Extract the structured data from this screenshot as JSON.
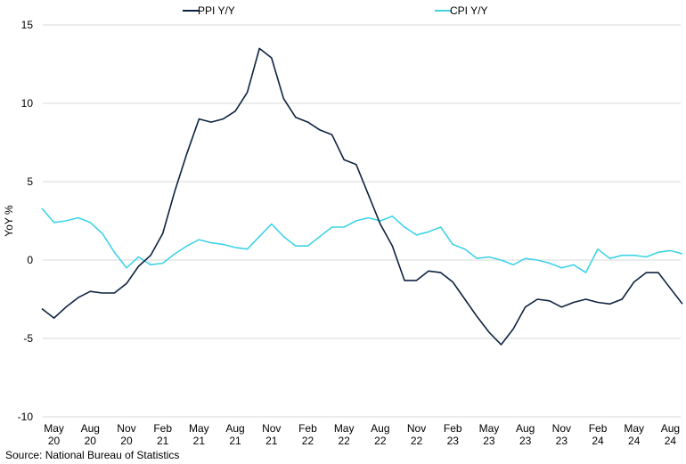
{
  "chart_data": {
    "type": "line",
    "ylabel": "YoY %",
    "ylim": [
      -10,
      15
    ],
    "yticks": [
      -10,
      -5,
      0,
      5,
      10,
      15
    ],
    "grid": "horizontal",
    "legend_position": "top",
    "x_tick_labels": [
      {
        "month": "May",
        "year": "20"
      },
      {
        "month": "Aug",
        "year": "20"
      },
      {
        "month": "Nov",
        "year": "20"
      },
      {
        "month": "Feb",
        "year": "21"
      },
      {
        "month": "May",
        "year": "21"
      },
      {
        "month": "Aug",
        "year": "21"
      },
      {
        "month": "Nov",
        "year": "21"
      },
      {
        "month": "Feb",
        "year": "22"
      },
      {
        "month": "May",
        "year": "22"
      },
      {
        "month": "Aug",
        "year": "22"
      },
      {
        "month": "Nov",
        "year": "22"
      },
      {
        "month": "Feb",
        "year": "23"
      },
      {
        "month": "May",
        "year": "23"
      },
      {
        "month": "Aug",
        "year": "23"
      },
      {
        "month": "Nov",
        "year": "23"
      },
      {
        "month": "Feb",
        "year": "24"
      },
      {
        "month": "May",
        "year": "24"
      },
      {
        "month": "Aug",
        "year": "24"
      }
    ],
    "x": [
      "2020-04",
      "2020-05",
      "2020-06",
      "2020-07",
      "2020-08",
      "2020-09",
      "2020-10",
      "2020-11",
      "2020-12",
      "2021-01",
      "2021-02",
      "2021-03",
      "2021-04",
      "2021-05",
      "2021-06",
      "2021-07",
      "2021-08",
      "2021-09",
      "2021-10",
      "2021-11",
      "2021-12",
      "2022-01",
      "2022-02",
      "2022-03",
      "2022-04",
      "2022-05",
      "2022-06",
      "2022-07",
      "2022-08",
      "2022-09",
      "2022-10",
      "2022-11",
      "2022-12",
      "2023-01",
      "2023-02",
      "2023-03",
      "2023-04",
      "2023-05",
      "2023-06",
      "2023-07",
      "2023-08",
      "2023-09",
      "2023-10",
      "2023-11",
      "2023-12",
      "2024-01",
      "2024-02",
      "2024-03",
      "2024-04",
      "2024-05",
      "2024-06",
      "2024-07",
      "2024-08",
      "2024-09"
    ],
    "series": [
      {
        "name": "PPI Y/Y",
        "color": "#0e2240",
        "values": [
          -3.1,
          -3.7,
          -3.0,
          -2.4,
          -2.0,
          -2.1,
          -2.1,
          -1.5,
          -0.4,
          0.3,
          1.7,
          4.4,
          6.8,
          9.0,
          8.8,
          9.0,
          9.5,
          10.7,
          13.5,
          12.9,
          10.3,
          9.1,
          8.8,
          8.3,
          8.0,
          6.4,
          6.1,
          4.2,
          2.3,
          0.9,
          -1.3,
          -1.3,
          -0.7,
          -0.8,
          -1.4,
          -2.5,
          -3.6,
          -4.6,
          -5.4,
          -4.4,
          -3.0,
          -2.5,
          -2.6,
          -3.0,
          -2.7,
          -2.5,
          -2.7,
          -2.8,
          -2.5,
          -1.4,
          -0.8,
          -0.8,
          -1.8,
          -2.8
        ]
      },
      {
        "name": "CPI Y/Y",
        "color": "#3fd3e8",
        "values": [
          3.3,
          2.4,
          2.5,
          2.7,
          2.4,
          1.7,
          0.5,
          -0.5,
          0.2,
          -0.3,
          -0.2,
          0.4,
          0.9,
          1.3,
          1.1,
          1.0,
          0.8,
          0.7,
          1.5,
          2.3,
          1.5,
          0.9,
          0.9,
          1.5,
          2.1,
          2.1,
          2.5,
          2.7,
          2.5,
          2.8,
          2.1,
          1.6,
          1.8,
          2.1,
          1.0,
          0.7,
          0.1,
          0.2,
          0.0,
          -0.3,
          0.1,
          0.0,
          -0.2,
          -0.5,
          -0.3,
          -0.8,
          0.7,
          0.1,
          0.3,
          0.3,
          0.2,
          0.5,
          0.6,
          0.4
        ]
      }
    ]
  },
  "source": "Source: National Bureau of Statistics"
}
